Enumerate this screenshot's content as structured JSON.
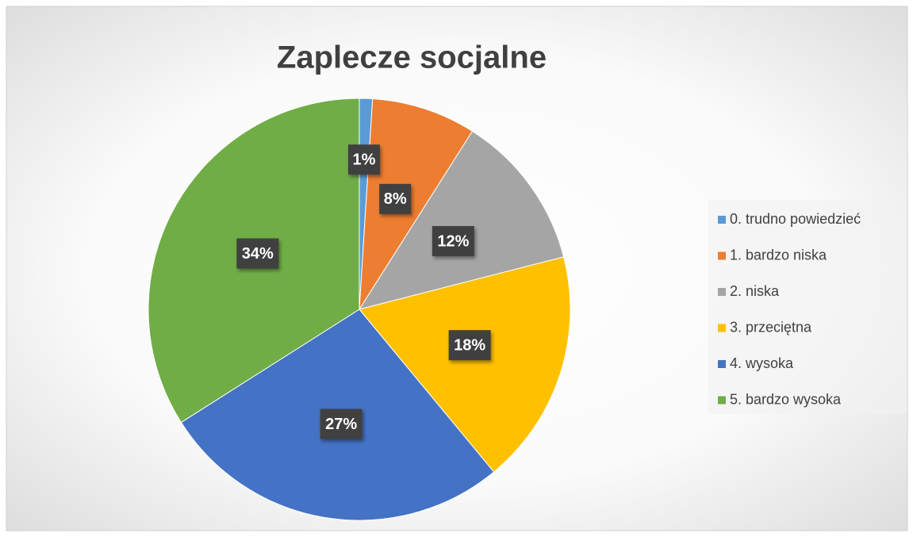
{
  "chart_data": {
    "type": "pie",
    "title": "Zaplecze socjalne",
    "categories": [
      "0. trudno powiedzieć",
      "1. bardzo niska",
      "2. niska",
      "3. przeciętna",
      "4. wysoka",
      "5. bardzo wysoka"
    ],
    "values": [
      1,
      8,
      12,
      18,
      27,
      34
    ],
    "value_labels": [
      "1%",
      "8%",
      "12%",
      "18%",
      "27%",
      "34%"
    ],
    "colors": [
      "#5b9bd5",
      "#ed7d31",
      "#a5a5a5",
      "#ffc000",
      "#4472c4",
      "#70ad47"
    ],
    "legend": "right"
  }
}
